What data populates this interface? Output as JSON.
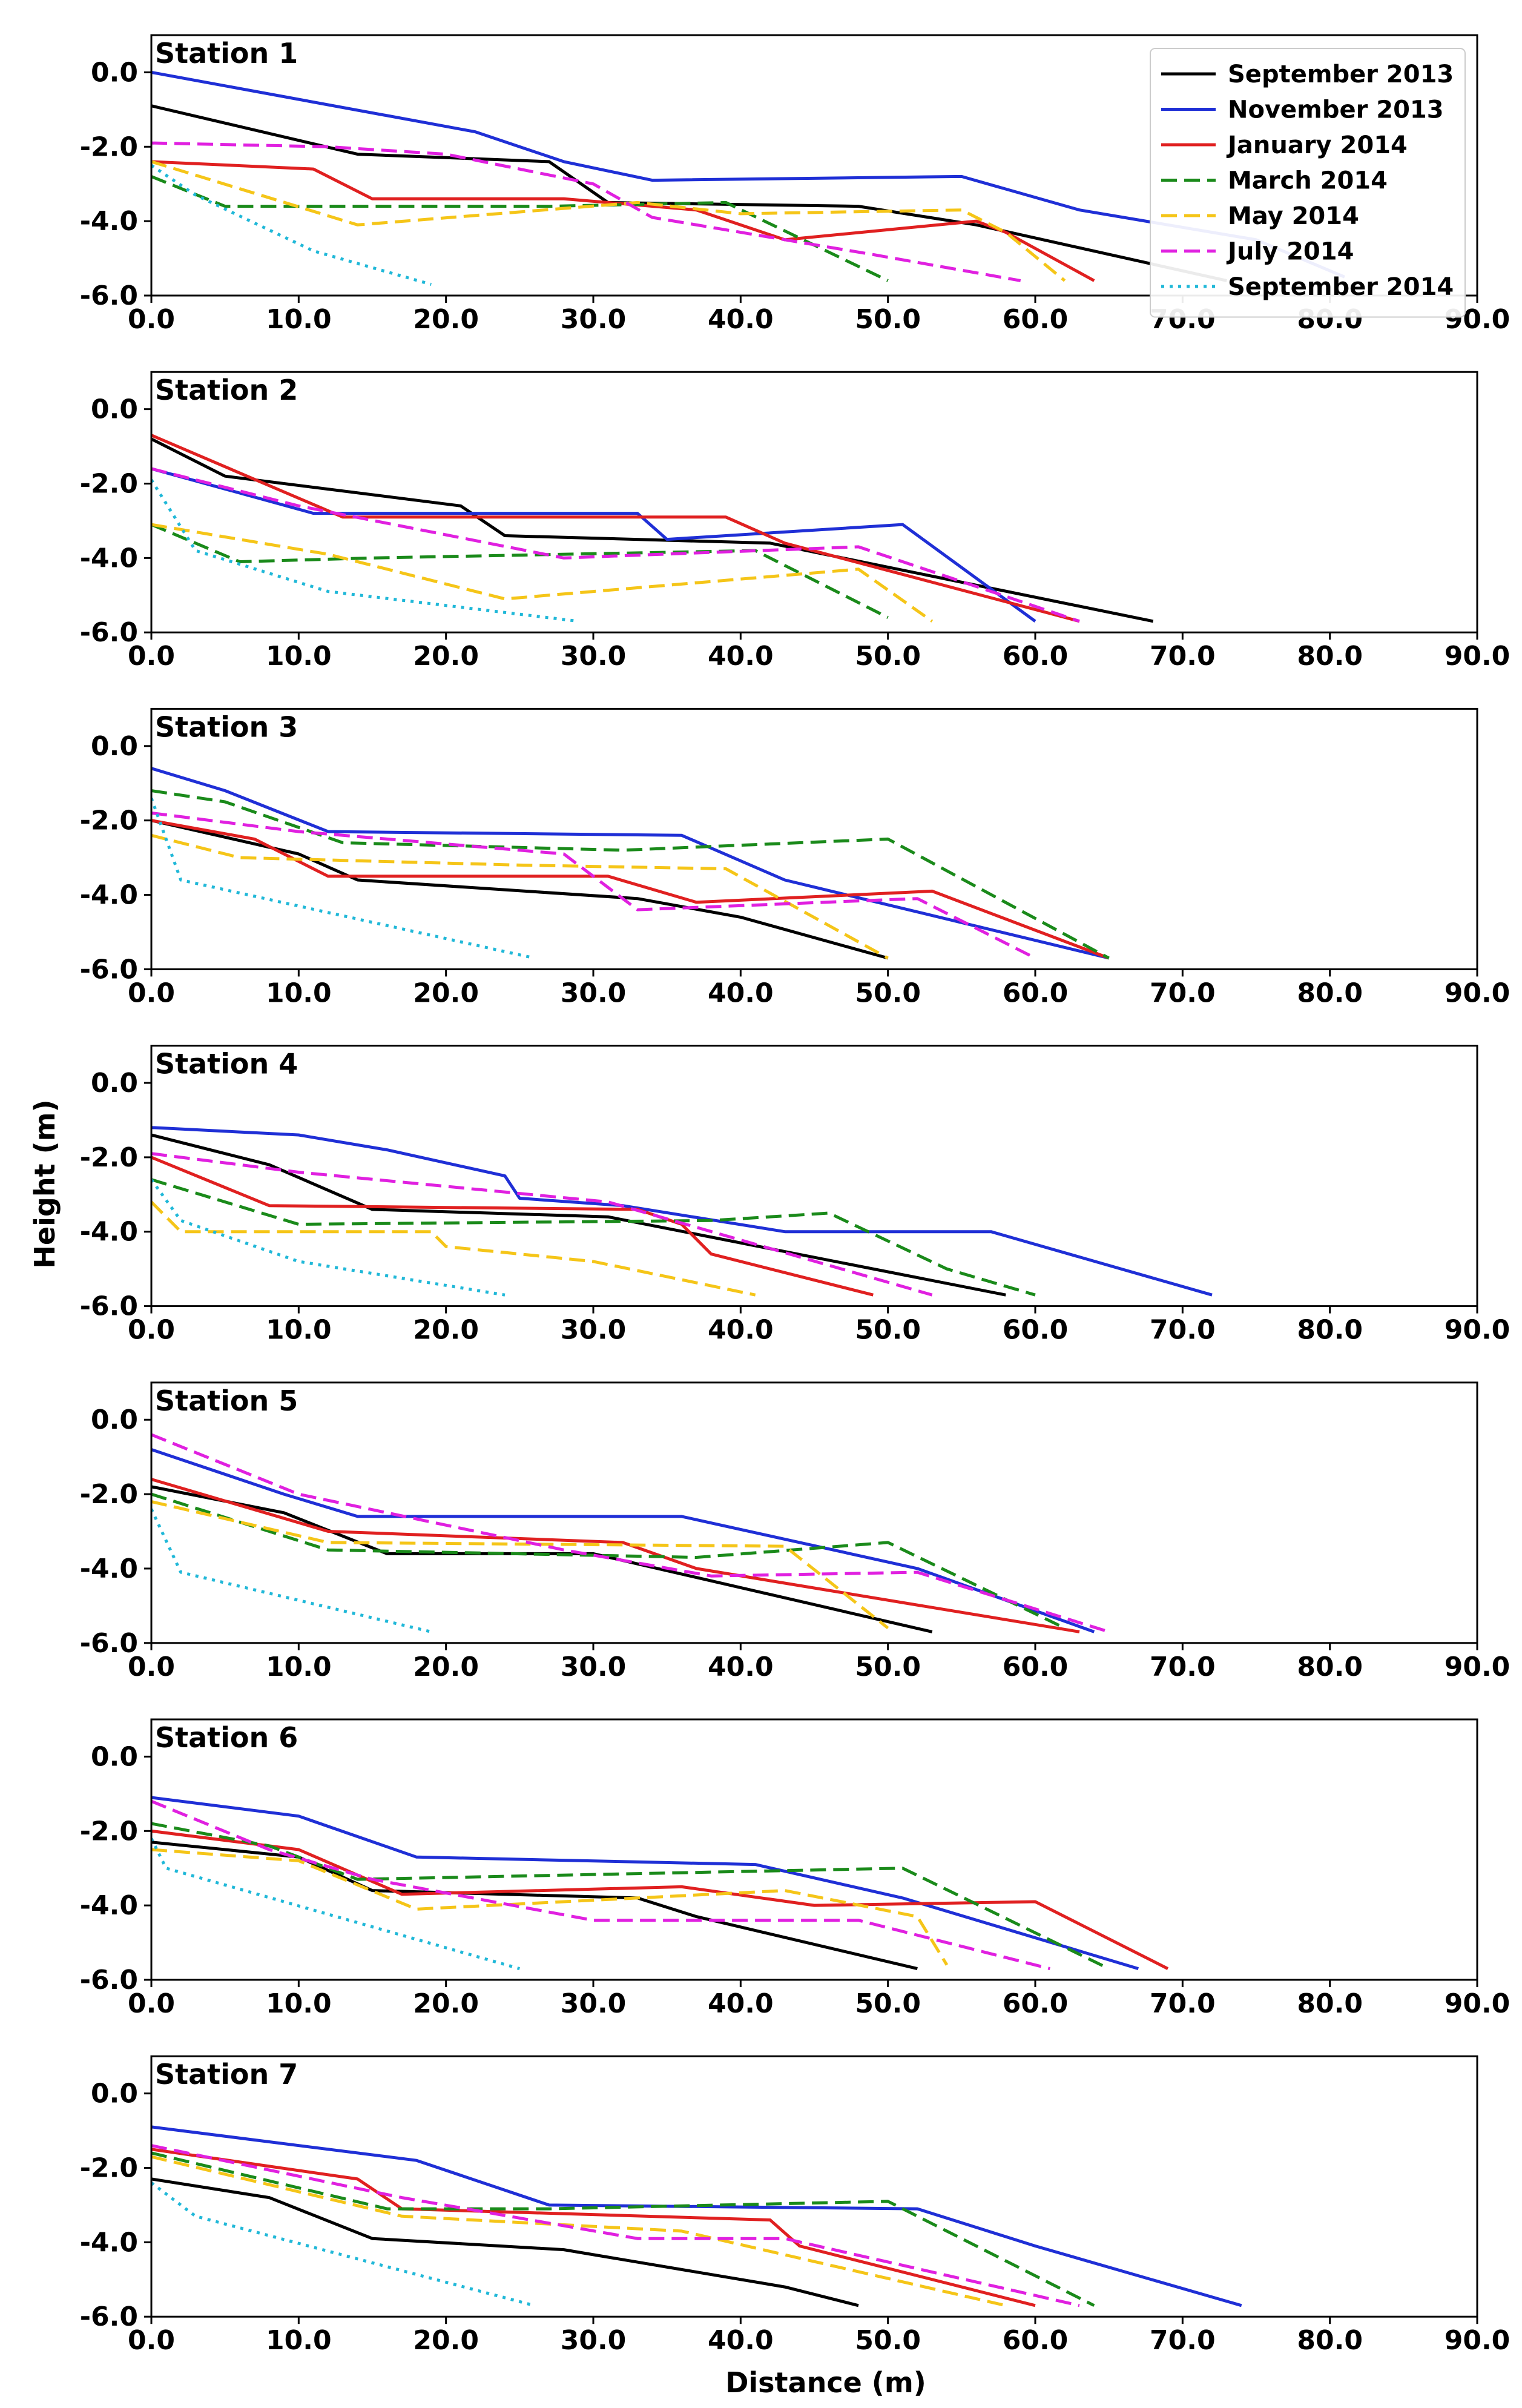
{
  "chart_data": {
    "type": "line",
    "xlabel": "Distance (m)",
    "ylabel": "Height (m)",
    "xlim": [
      0,
      90
    ],
    "ylim": [
      -6,
      1
    ],
    "x_ticks": [
      0,
      10,
      20,
      30,
      40,
      50,
      60,
      70,
      80,
      90
    ],
    "y_ticks": [
      0,
      -2,
      -4,
      -6
    ],
    "x_tick_labels": [
      "0.0",
      "10.0",
      "20.0",
      "30.0",
      "40.0",
      "50.0",
      "60.0",
      "70.0",
      "80.0",
      "90.0"
    ],
    "y_tick_labels": [
      "0.0",
      "-2.0",
      "-4.0",
      "-6.0"
    ],
    "legend": {
      "placement": "top-right of Station 1 panel",
      "entries": [
        {
          "name": "September 2013",
          "color": "#000000",
          "style": "solid"
        },
        {
          "name": "November 2013",
          "color": "#1f2fd6",
          "style": "solid"
        },
        {
          "name": "January 2014",
          "color": "#e02020",
          "style": "solid"
        },
        {
          "name": "March 2014",
          "color": "#1a8a1a",
          "style": "dashed"
        },
        {
          "name": "May 2014",
          "color": "#f5c518",
          "style": "dashed"
        },
        {
          "name": "July 2014",
          "color": "#e020e0",
          "style": "dashed"
        },
        {
          "name": "September 2014",
          "color": "#20b8d8",
          "style": "dotted"
        }
      ]
    },
    "panels": [
      {
        "title": "Station 1",
        "series": [
          {
            "name": "September 2013",
            "x": [
              0,
              14,
              27,
              31,
              48,
              56,
              73
            ],
            "y": [
              -0.9,
              -2.2,
              -2.4,
              -3.5,
              -3.6,
              -4.1,
              -5.6
            ]
          },
          {
            "name": "November 2013",
            "x": [
              0,
              22,
              28,
              34,
              55,
              63,
              75,
              81
            ],
            "y": [
              0,
              -1.6,
              -2.4,
              -2.9,
              -2.8,
              -3.7,
              -4.5,
              -5.5
            ]
          },
          {
            "name": "January 2014",
            "x": [
              0,
              11,
              15,
              28,
              37,
              43,
              56,
              58,
              64
            ],
            "y": [
              -2.4,
              -2.6,
              -3.4,
              -3.4,
              -3.7,
              -4.5,
              -4.0,
              -4.3,
              -5.6
            ]
          },
          {
            "name": "March 2014",
            "x": [
              0,
              5,
              27,
              39,
              50
            ],
            "y": [
              -2.8,
              -3.6,
              -3.6,
              -3.5,
              -5.6
            ]
          },
          {
            "name": "May 2014",
            "x": [
              0,
              14,
              33,
              40,
              55,
              58,
              62
            ],
            "y": [
              -2.4,
              -4.1,
              -3.5,
              -3.8,
              -3.7,
              -4.3,
              -5.6
            ]
          },
          {
            "name": "July 2014",
            "x": [
              0,
              12,
              20,
              30,
              34,
              49,
              59
            ],
            "y": [
              -1.9,
              -2.0,
              -2.2,
              -3.0,
              -3.9,
              -4.9,
              -5.6
            ]
          },
          {
            "name": "September 2014",
            "x": [
              0,
              3,
              11,
              19
            ],
            "y": [
              -2.5,
              -3.3,
              -4.8,
              -5.7
            ]
          }
        ]
      },
      {
        "title": "Station 2",
        "series": [
          {
            "name": "September 2013",
            "x": [
              0,
              5,
              21,
              24,
              42,
              68
            ],
            "y": [
              -0.8,
              -1.8,
              -2.6,
              -3.4,
              -3.6,
              -5.7
            ]
          },
          {
            "name": "November 2013",
            "x": [
              0,
              11,
              33,
              35,
              51,
              60
            ],
            "y": [
              -1.6,
              -2.8,
              -2.8,
              -3.5,
              -3.1,
              -5.7
            ]
          },
          {
            "name": "January 2014",
            "x": [
              0,
              13,
              39,
              43,
              63
            ],
            "y": [
              -0.7,
              -2.9,
              -2.9,
              -3.6,
              -5.7
            ]
          },
          {
            "name": "March 2014",
            "x": [
              0,
              6,
              15,
              41,
              50
            ],
            "y": [
              -3.1,
              -4.1,
              -4.0,
              -3.8,
              -5.6
            ]
          },
          {
            "name": "May 2014",
            "x": [
              0,
              12,
              24,
              48,
              53
            ],
            "y": [
              -3.1,
              -3.9,
              -5.1,
              -4.3,
              -5.7
            ]
          },
          {
            "name": "July 2014",
            "x": [
              0,
              10,
              28,
              48,
              63
            ],
            "y": [
              -1.6,
              -2.6,
              -4.0,
              -3.7,
              -5.7
            ]
          },
          {
            "name": "September 2014",
            "x": [
              0,
              3,
              12,
              29
            ],
            "y": [
              -1.9,
              -3.8,
              -4.9,
              -5.7
            ]
          }
        ]
      },
      {
        "title": "Station 3",
        "series": [
          {
            "name": "September 2013",
            "x": [
              0,
              10,
              14,
              33,
              40,
              50
            ],
            "y": [
              -2.0,
              -2.9,
              -3.6,
              -4.1,
              -4.6,
              -5.7
            ]
          },
          {
            "name": "November 2013",
            "x": [
              0,
              5,
              12,
              36,
              43,
              65
            ],
            "y": [
              -0.6,
              -1.2,
              -2.3,
              -2.4,
              -3.6,
              -5.7
            ]
          },
          {
            "name": "January 2014",
            "x": [
              0,
              7,
              12,
              31,
              37,
              53,
              65
            ],
            "y": [
              -2.0,
              -2.5,
              -3.5,
              -3.5,
              -4.2,
              -3.9,
              -5.7
            ]
          },
          {
            "name": "March 2014",
            "x": [
              0,
              5,
              13,
              32,
              50,
              65
            ],
            "y": [
              -1.2,
              -1.5,
              -2.6,
              -2.8,
              -2.5,
              -5.7
            ]
          },
          {
            "name": "May 2014",
            "x": [
              0,
              6,
              25,
              39,
              50
            ],
            "y": [
              -2.4,
              -3.0,
              -3.2,
              -3.3,
              -5.7
            ]
          },
          {
            "name": "July 2014",
            "x": [
              0,
              10,
              28,
              33,
              52,
              60
            ],
            "y": [
              -1.8,
              -2.3,
              -2.9,
              -4.4,
              -4.1,
              -5.7
            ]
          },
          {
            "name": "September 2014",
            "x": [
              0,
              2,
              26
            ],
            "y": [
              -1.4,
              -3.6,
              -5.7
            ]
          }
        ]
      },
      {
        "title": "Station 4",
        "series": [
          {
            "name": "September 2013",
            "x": [
              0,
              8,
              15,
              31,
              58
            ],
            "y": [
              -1.4,
              -2.2,
              -3.4,
              -3.6,
              -5.7
            ]
          },
          {
            "name": "November 2013",
            "x": [
              0,
              10,
              16,
              24,
              25,
              32,
              43,
              57,
              72
            ],
            "y": [
              -1.2,
              -1.4,
              -1.8,
              -2.5,
              -3.1,
              -3.3,
              -4.0,
              -4.0,
              -5.7
            ]
          },
          {
            "name": "January 2014",
            "x": [
              0,
              8,
              33,
              36,
              38,
              49
            ],
            "y": [
              -2.0,
              -3.3,
              -3.4,
              -3.8,
              -4.6,
              -5.7
            ]
          },
          {
            "name": "March 2014",
            "x": [
              0,
              10,
              38,
              46,
              54,
              60
            ],
            "y": [
              -2.6,
              -3.8,
              -3.7,
              -3.5,
              -5.0,
              -5.7
            ]
          },
          {
            "name": "May 2014",
            "x": [
              0,
              2,
              19,
              20,
              30,
              41
            ],
            "y": [
              -3.2,
              -4.0,
              -4.0,
              -4.4,
              -4.8,
              -5.7
            ]
          },
          {
            "name": "July 2014",
            "x": [
              0,
              10,
              31,
              53
            ],
            "y": [
              -1.9,
              -2.4,
              -3.2,
              -5.7
            ]
          },
          {
            "name": "September 2014",
            "x": [
              0,
              2,
              10,
              24
            ],
            "y": [
              -2.6,
              -3.7,
              -4.8,
              -5.7
            ]
          }
        ]
      },
      {
        "title": "Station 5",
        "series": [
          {
            "name": "September 2013",
            "x": [
              0,
              9,
              16,
              30,
              53
            ],
            "y": [
              -1.8,
              -2.5,
              -3.6,
              -3.6,
              -5.7
            ]
          },
          {
            "name": "November 2013",
            "x": [
              0,
              9,
              14,
              36,
              52,
              64
            ],
            "y": [
              -0.8,
              -2.0,
              -2.6,
              -2.6,
              -4.0,
              -5.7
            ]
          },
          {
            "name": "January 2014",
            "x": [
              0,
              12,
              32,
              37,
              63
            ],
            "y": [
              -1.6,
              -3.0,
              -3.3,
              -4.0,
              -5.7
            ]
          },
          {
            "name": "March 2014",
            "x": [
              0,
              12,
              37,
              50,
              62
            ],
            "y": [
              -2.0,
              -3.5,
              -3.7,
              -3.3,
              -5.6
            ]
          },
          {
            "name": "May 2014",
            "x": [
              0,
              12,
              43,
              50
            ],
            "y": [
              -2.2,
              -3.3,
              -3.4,
              -5.6
            ]
          },
          {
            "name": "July 2014",
            "x": [
              0,
              10,
              28,
              38,
              52,
              65
            ],
            "y": [
              -0.4,
              -2.0,
              -3.5,
              -4.2,
              -4.1,
              -5.7
            ]
          },
          {
            "name": "September 2014",
            "x": [
              0,
              2,
              19
            ],
            "y": [
              -2.4,
              -4.1,
              -5.7
            ]
          }
        ]
      },
      {
        "title": "Station 6",
        "series": [
          {
            "name": "September 2013",
            "x": [
              0,
              10,
              15,
              33,
              37,
              52
            ],
            "y": [
              -2.3,
              -2.7,
              -3.6,
              -3.8,
              -4.3,
              -5.7
            ]
          },
          {
            "name": "November 2013",
            "x": [
              0,
              10,
              18,
              41,
              51,
              67
            ],
            "y": [
              -1.1,
              -1.6,
              -2.7,
              -2.9,
              -3.8,
              -5.7
            ]
          },
          {
            "name": "January 2014",
            "x": [
              0,
              10,
              17,
              36,
              45,
              60,
              69
            ],
            "y": [
              -2.0,
              -2.5,
              -3.7,
              -3.5,
              -4.0,
              -3.9,
              -5.7
            ]
          },
          {
            "name": "March 2014",
            "x": [
              0,
              8,
              14,
              51,
              65
            ],
            "y": [
              -1.8,
              -2.4,
              -3.3,
              -3.0,
              -5.7
            ]
          },
          {
            "name": "May 2014",
            "x": [
              0,
              10,
              18,
              43,
              52,
              54
            ],
            "y": [
              -2.5,
              -2.8,
              -4.1,
              -3.6,
              -4.3,
              -5.6
            ]
          },
          {
            "name": "July 2014",
            "x": [
              0,
              8,
              15,
              30,
              48,
              61
            ],
            "y": [
              -1.2,
              -2.5,
              -3.3,
              -4.4,
              -4.4,
              -5.7
            ]
          },
          {
            "name": "September 2014",
            "x": [
              0,
              1,
              25
            ],
            "y": [
              -2.2,
              -3.0,
              -5.7
            ]
          }
        ]
      },
      {
        "title": "Station 7",
        "series": [
          {
            "name": "September 2013",
            "x": [
              0,
              8,
              15,
              28,
              43,
              48
            ],
            "y": [
              -2.3,
              -2.8,
              -3.9,
              -4.2,
              -5.2,
              -5.7
            ]
          },
          {
            "name": "November 2013",
            "x": [
              0,
              18,
              27,
              52,
              60,
              74
            ],
            "y": [
              -0.9,
              -1.8,
              -3.0,
              -3.1,
              -4.1,
              -5.7
            ]
          },
          {
            "name": "January 2014",
            "x": [
              0,
              14,
              17,
              42,
              44,
              60
            ],
            "y": [
              -1.5,
              -2.3,
              -3.1,
              -3.4,
              -4.1,
              -5.7
            ]
          },
          {
            "name": "March 2014",
            "x": [
              0,
              16,
              27,
              50,
              64
            ],
            "y": [
              -1.6,
              -3.1,
              -3.1,
              -2.9,
              -5.7
            ]
          },
          {
            "name": "May 2014",
            "x": [
              0,
              17,
              36,
              58
            ],
            "y": [
              -1.7,
              -3.3,
              -3.7,
              -5.7
            ]
          },
          {
            "name": "July 2014",
            "x": [
              0,
              17,
              33,
              43,
              63
            ],
            "y": [
              -1.4,
              -2.8,
              -3.9,
              -3.9,
              -5.7
            ]
          },
          {
            "name": "September 2014",
            "x": [
              0,
              3,
              26
            ],
            "y": [
              -2.4,
              -3.3,
              -5.7
            ]
          }
        ]
      }
    ]
  }
}
